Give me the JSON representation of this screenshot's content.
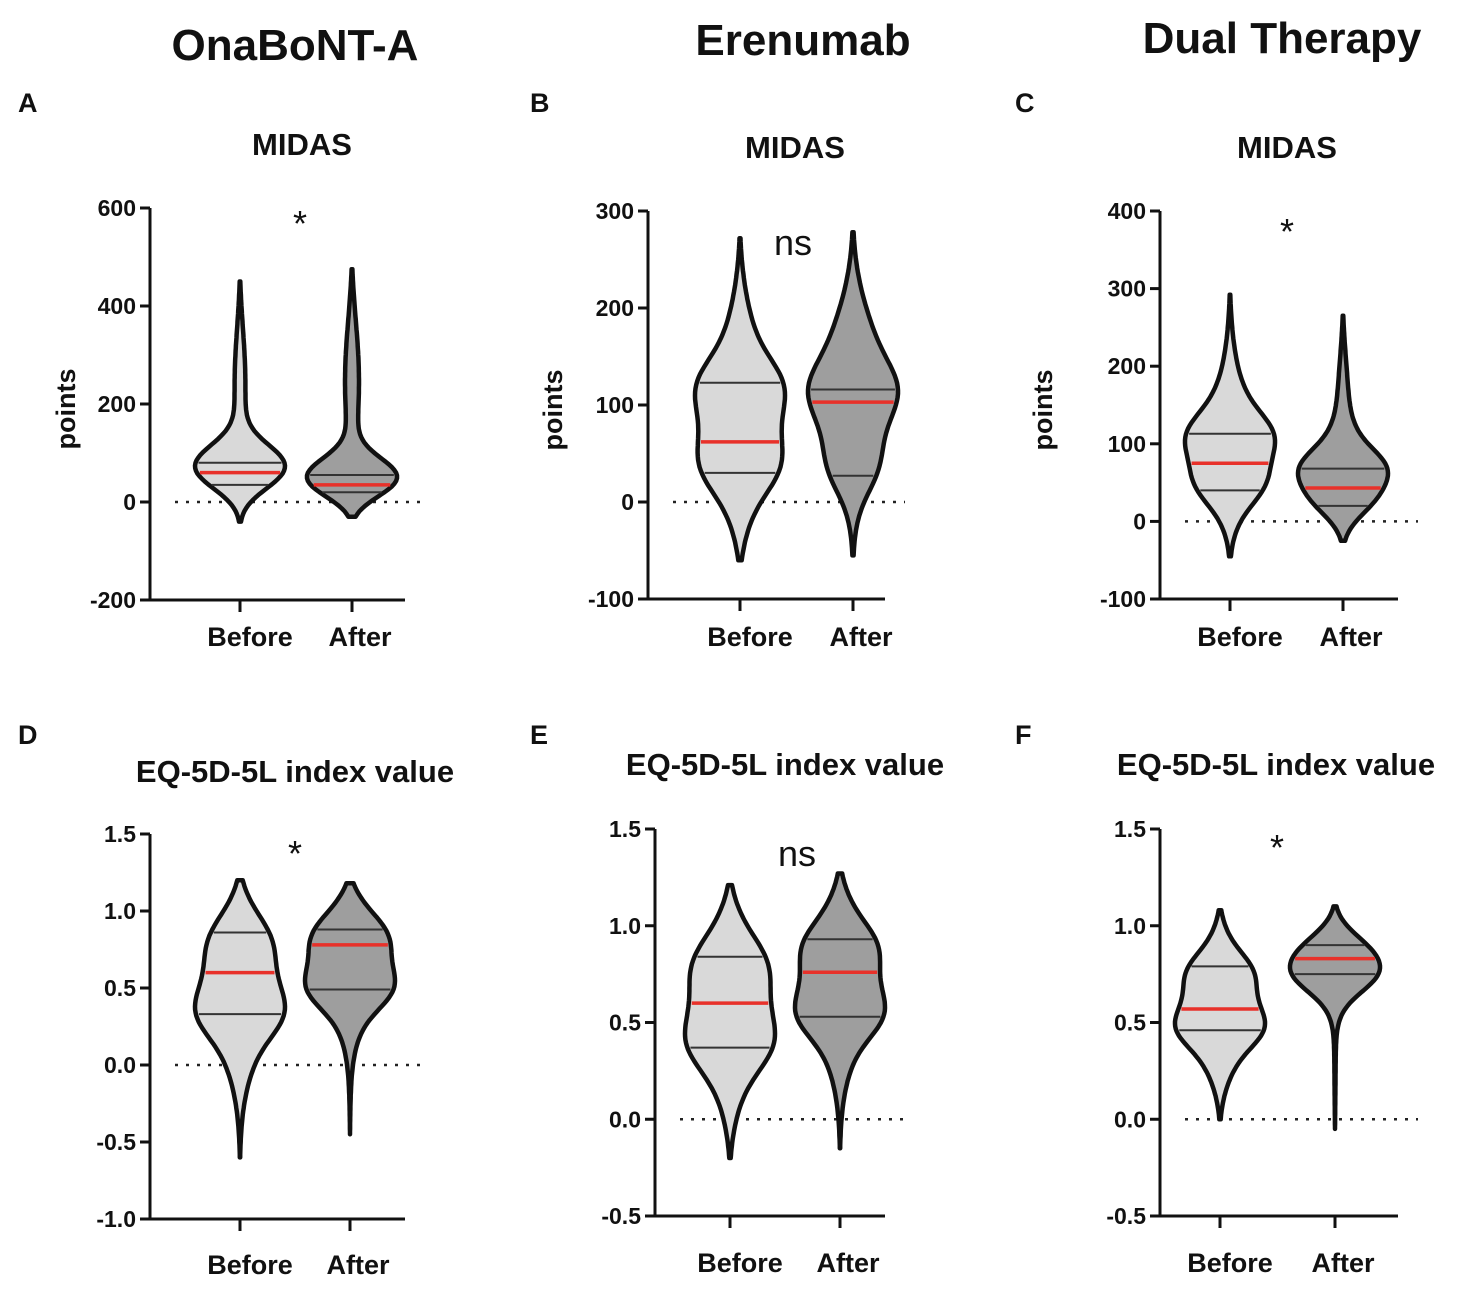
{
  "figure": {
    "column_titles": [
      "OnaBoNT-A",
      "Erenumab",
      "Dual Therapy"
    ]
  },
  "colors": {
    "before_fill": "#d9d9d9",
    "after_fill": "#9e9e9e",
    "median_line": "#e8312a",
    "quartile_line": "#333333",
    "outline": "#111111"
  },
  "chart_data": [
    {
      "type": "violin",
      "panel": "A",
      "column": "OnaBoNT-A",
      "title": "MIDAS",
      "ylabel": "points",
      "ylim": [
        -200,
        600
      ],
      "yticks": [
        600,
        400,
        200,
        0,
        -200
      ],
      "ytick_labels": [
        "600",
        "400",
        "200",
        "0",
        "-200"
      ],
      "categories": [
        "Before",
        "After"
      ],
      "significance": "*",
      "series": [
        {
          "name": "Before",
          "min": -40,
          "q1": 35,
          "median": 60,
          "q3": 80,
          "max": 450
        },
        {
          "name": "After",
          "min": -30,
          "q1": 20,
          "median": 35,
          "q3": 55,
          "max": 475
        }
      ]
    },
    {
      "type": "violin",
      "panel": "B",
      "column": "Erenumab",
      "title": "MIDAS",
      "ylabel": "points",
      "ylim": [
        -100,
        300
      ],
      "yticks": [
        300,
        200,
        100,
        0,
        -100
      ],
      "ytick_labels": [
        "300",
        "200",
        "100",
        "0",
        "-100"
      ],
      "categories": [
        "Before",
        "After"
      ],
      "significance": "ns",
      "series": [
        {
          "name": "Before",
          "min": -60,
          "q1": 30,
          "median": 62,
          "q3": 123,
          "max": 272
        },
        {
          "name": "After",
          "min": -55,
          "q1": 27,
          "median": 103,
          "q3": 116,
          "max": 278
        }
      ]
    },
    {
      "type": "violin",
      "panel": "C",
      "column": "Dual Therapy",
      "title": "MIDAS",
      "ylabel": "points",
      "ylim": [
        -100,
        400
      ],
      "yticks": [
        400,
        300,
        200,
        100,
        0,
        -100
      ],
      "ytick_labels": [
        "400",
        "300",
        "200",
        "100",
        "0",
        "-100"
      ],
      "categories": [
        "Before",
        "After"
      ],
      "significance": "*",
      "series": [
        {
          "name": "Before",
          "min": -45,
          "q1": 40,
          "median": 75,
          "q3": 113,
          "max": 292
        },
        {
          "name": "After",
          "min": -25,
          "q1": 20,
          "median": 43,
          "q3": 68,
          "max": 265
        }
      ]
    },
    {
      "type": "violin",
      "panel": "D",
      "column": "OnaBoNT-A",
      "title": "EQ-5D-5L index value",
      "ylabel": "",
      "ylim": [
        -1.0,
        1.5
      ],
      "yticks": [
        1.5,
        1.0,
        0.5,
        0.0,
        -0.5,
        -1.0
      ],
      "ytick_labels": [
        "1.5",
        "1.0",
        "0.5",
        "0.0",
        "-0.5",
        "-1.0"
      ],
      "categories": [
        "Before",
        "After"
      ],
      "significance": "*",
      "series": [
        {
          "name": "Before",
          "min": -0.6,
          "q1": 0.33,
          "median": 0.6,
          "q3": 0.86,
          "max": 1.2
        },
        {
          "name": "After",
          "min": -0.45,
          "q1": 0.49,
          "median": 0.78,
          "q3": 0.88,
          "max": 1.18
        }
      ]
    },
    {
      "type": "violin",
      "panel": "E",
      "column": "Erenumab",
      "title": "EQ-5D-5L index value",
      "ylabel": "",
      "ylim": [
        -0.5,
        1.5
      ],
      "yticks": [
        1.5,
        1.0,
        0.5,
        0.0,
        -0.5
      ],
      "ytick_labels": [
        "1.5",
        "1.0",
        "0.5",
        "0.0",
        "-0.5"
      ],
      "categories": [
        "Before",
        "After"
      ],
      "significance": "ns",
      "series": [
        {
          "name": "Before",
          "min": -0.2,
          "q1": 0.37,
          "median": 0.6,
          "q3": 0.84,
          "max": 1.21
        },
        {
          "name": "After",
          "min": -0.15,
          "q1": 0.53,
          "median": 0.76,
          "q3": 0.93,
          "max": 1.27
        }
      ]
    },
    {
      "type": "violin",
      "panel": "F",
      "column": "Dual Therapy",
      "title": "EQ-5D-5L index value",
      "ylabel": "",
      "ylim": [
        -0.5,
        1.5
      ],
      "yticks": [
        1.5,
        1.0,
        0.5,
        0.0,
        -0.5
      ],
      "ytick_labels": [
        "1.5",
        "1.0",
        "0.5",
        "0.0",
        "-0.5"
      ],
      "categories": [
        "Before",
        "After"
      ],
      "significance": "*",
      "series": [
        {
          "name": "Before",
          "min": 0.0,
          "q1": 0.46,
          "median": 0.57,
          "q3": 0.79,
          "max": 1.08
        },
        {
          "name": "After",
          "min": -0.05,
          "q1": 0.75,
          "median": 0.83,
          "q3": 0.9,
          "max": 1.1
        }
      ]
    }
  ]
}
